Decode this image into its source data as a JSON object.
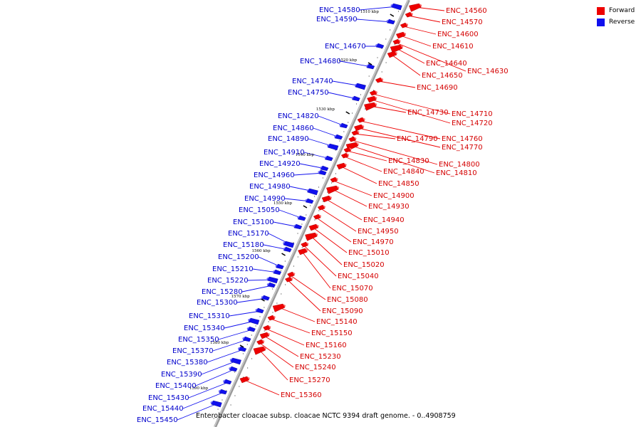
{
  "caption": "Enterobacter cloacae subsp. cloacae NCTC 9394 draft genome. - 0..4908759",
  "legend": {
    "forward": {
      "label": "Forward",
      "color": "#ee0000"
    },
    "reverse": {
      "label": "Reverse",
      "color": "#1010ee"
    }
  },
  "ruler_labels": [
    "1510 kbp",
    "1520 kbp",
    "1530 kbp",
    "1540 kbp",
    "1550 kbp",
    "1560 kbp",
    "1570 kbp",
    "1580 kbp",
    "1590 kbp"
  ],
  "forward_genes": [
    "ENC_14560",
    "ENC_14570",
    "ENC_14600",
    "ENC_14610",
    "ENC_14630",
    "ENC_14640",
    "ENC_14650",
    "ENC_14690",
    "ENC_14710",
    "ENC_14720",
    "ENC_14730",
    "ENC_14760",
    "ENC_14770",
    "ENC_14790",
    "ENC_14800",
    "ENC_14810",
    "ENC_14830",
    "ENC_14840",
    "ENC_14850",
    "ENC_14900",
    "ENC_14930",
    "ENC_14940",
    "ENC_14950",
    "ENC_14970",
    "ENC_15010",
    "ENC_15020",
    "ENC_15040",
    "ENC_15070",
    "ENC_15080",
    "ENC_15090",
    "ENC_15140",
    "ENC_15150",
    "ENC_15160",
    "ENC_15230",
    "ENC_15240",
    "ENC_15270",
    "ENC_15360"
  ],
  "reverse_genes": [
    "ENC_14580",
    "ENC_14590",
    "ENC_14670",
    "ENC_14680",
    "ENC_14740",
    "ENC_14750",
    "ENC_14820",
    "ENC_14860",
    "ENC_14890",
    "ENC_14910",
    "ENC_14920",
    "ENC_14960",
    "ENC_14980",
    "ENC_14990",
    "ENC_15050",
    "ENC_15100",
    "ENC_15170",
    "ENC_15180",
    "ENC_15200",
    "ENC_15210",
    "ENC_15220",
    "ENC_15280",
    "ENC_15300",
    "ENC_15310",
    "ENC_15340",
    "ENC_15350",
    "ENC_15370",
    "ENC_15380",
    "ENC_15390",
    "ENC_15400",
    "ENC_15430",
    "ENC_15440",
    "ENC_15450"
  ]
}
